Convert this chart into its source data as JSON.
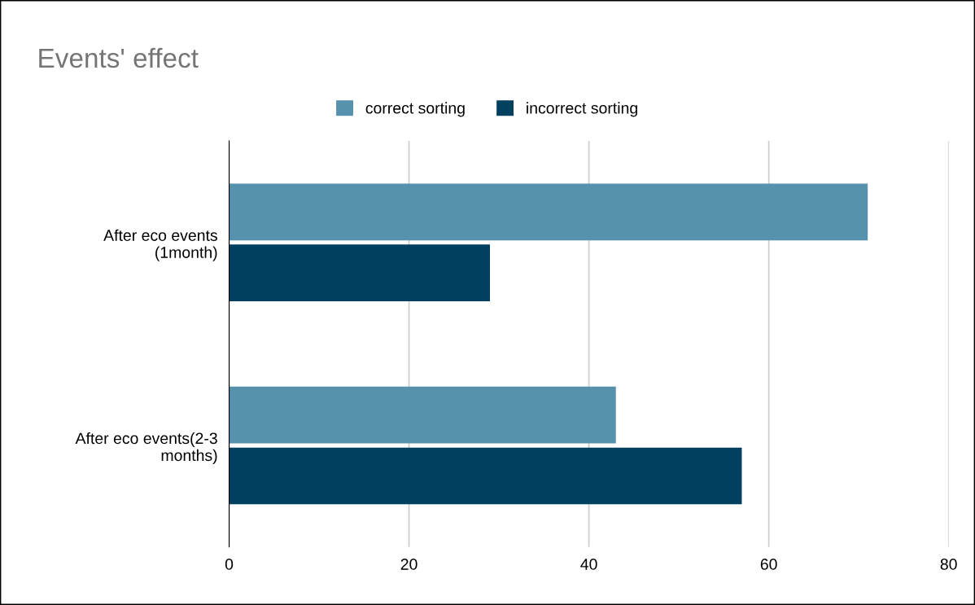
{
  "chart_data": {
    "type": "bar",
    "orientation": "horizontal",
    "title": "Events' effect",
    "categories": [
      "After eco events\n(1month)",
      "After eco events(2-3\nmonths)"
    ],
    "series": [
      {
        "name": "correct sorting",
        "color": "#5691ad",
        "values": [
          71,
          43
        ]
      },
      {
        "name": "incorrect sorting",
        "color": "#01405e",
        "values": [
          29,
          57
        ]
      }
    ],
    "xlim": [
      0,
      80
    ],
    "xticks": [
      0,
      20,
      40,
      60,
      80
    ],
    "grid": "x",
    "legend": "top"
  }
}
